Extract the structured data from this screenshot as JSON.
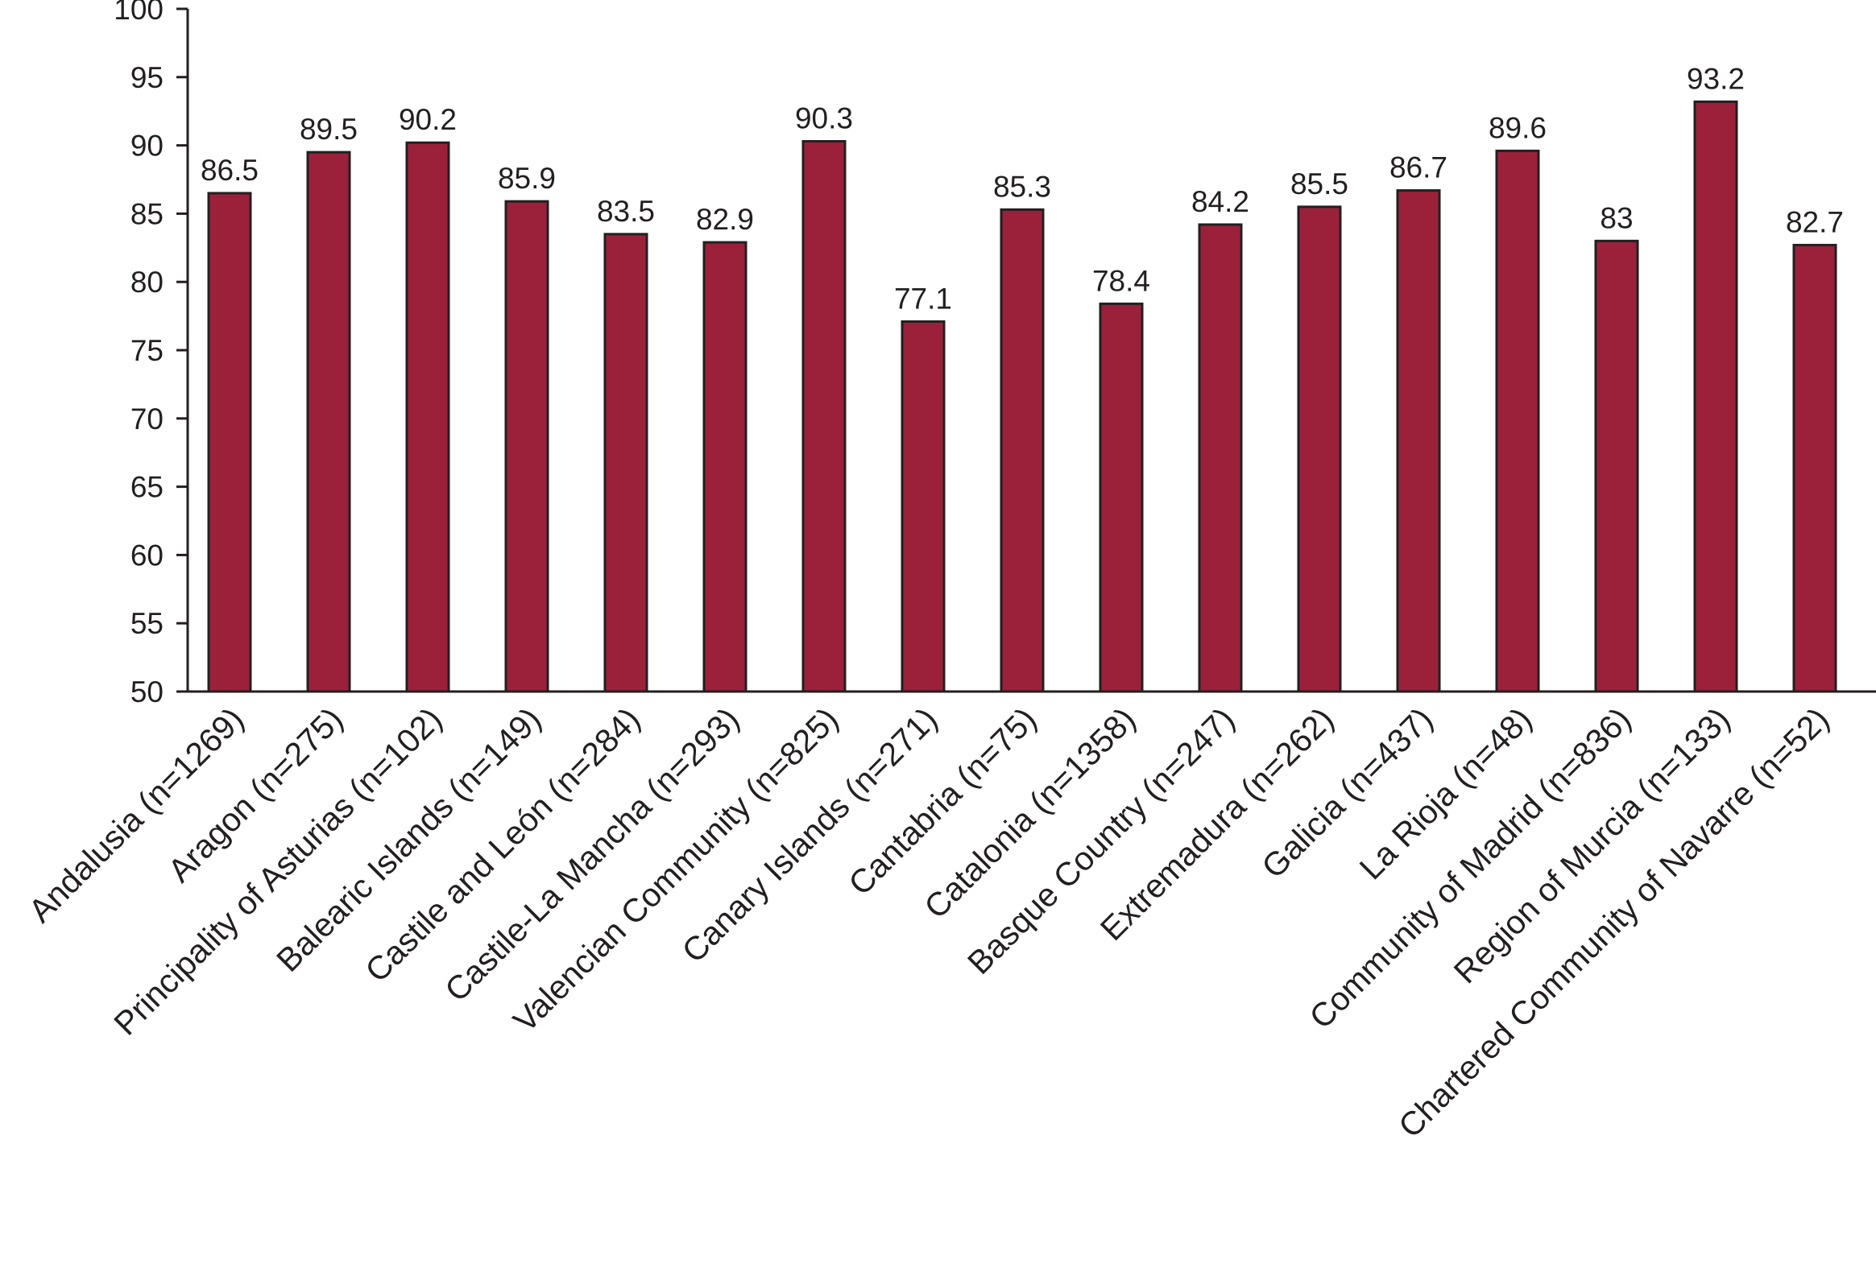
{
  "colors": {
    "bar": "#9b213b",
    "outline": "#231f20"
  },
  "chart_data": {
    "type": "bar",
    "title": "",
    "xlabel": "",
    "ylabel": "",
    "ylim": [
      50,
      100
    ],
    "y_ticks": [
      50,
      55,
      60,
      65,
      70,
      75,
      80,
      85,
      90,
      95,
      100
    ],
    "grid": false,
    "legend": "none",
    "categories": [
      "Andalusia (n=1269)",
      "Aragon (n=275)",
      "Principality of Asturias (n=102)",
      "Balearic Islands (n=149)",
      "Castile and León (n=284)",
      "Castile-La Mancha (n=293)",
      "Valencian Community (n=825)",
      "Canary Islands (n=271)",
      "Cantabria (n=75)",
      "Catalonia (n=1358)",
      "Basque Country (n=247)",
      "Extremadura (n=262)",
      "Galicia (n=437)",
      "La Rioja (n=48)",
      "Community of Madrid (n=836)",
      "Region of Murcia (n=133)",
      "Chartered Community of Navarre (n=52)"
    ],
    "values": [
      86.5,
      89.5,
      90.2,
      85.9,
      83.5,
      82.9,
      90.3,
      77.1,
      85.3,
      78.4,
      84.2,
      85.5,
      86.7,
      89.6,
      83,
      93.2,
      82.7
    ],
    "value_labels": [
      "86.5",
      "89.5",
      "90.2",
      "85.9",
      "83.5",
      "82.9",
      "90.3",
      "77.1",
      "85.3",
      "78.4",
      "84.2",
      "85.5",
      "86.7",
      "89.6",
      "83",
      "93.2",
      "82.7"
    ]
  }
}
